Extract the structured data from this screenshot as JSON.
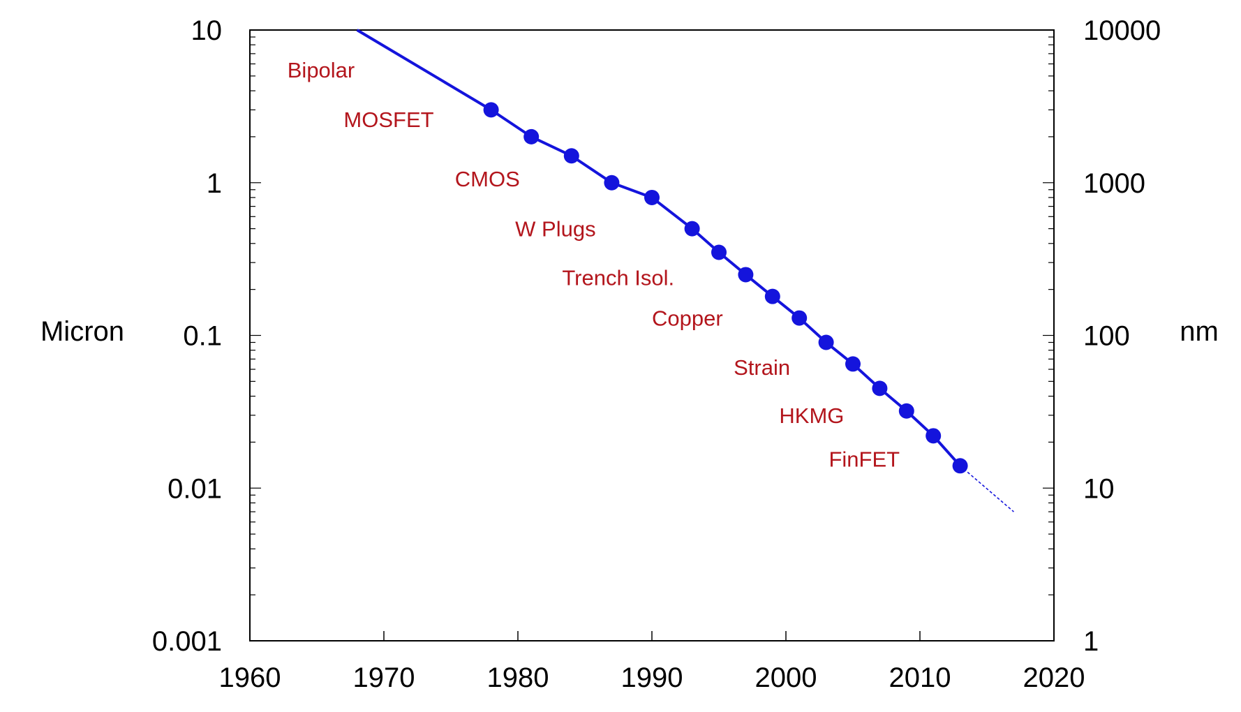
{
  "chart_data": {
    "type": "scatter",
    "xlim": [
      1960,
      2020
    ],
    "ylim": [
      0.001,
      10
    ],
    "y_scale": "log",
    "y2_scale": "log",
    "grid": false,
    "x_ticks": [
      "1960",
      "1970",
      "1980",
      "1990",
      "2000",
      "2010",
      "2020"
    ],
    "y_ticks": [
      {
        "value": 10,
        "label": "10"
      },
      {
        "value": 1,
        "label": "1"
      },
      {
        "value": 0.1,
        "label": "0.1"
      },
      {
        "value": 0.01,
        "label": "0.01"
      },
      {
        "value": 0.001,
        "label": "0.001"
      }
    ],
    "y2_ticks": [
      {
        "value": 10,
        "label": "10000"
      },
      {
        "value": 1,
        "label": "1000"
      },
      {
        "value": 0.1,
        "label": "100"
      },
      {
        "value": 0.01,
        "label": "10"
      },
      {
        "value": 0.001,
        "label": "1"
      }
    ],
    "ylabel": "Micron",
    "y2label": "nm",
    "line_color": "#1414dc",
    "annotation_color": "#b3151c",
    "trend_line": {
      "x": [
        1968,
        1978,
        1981,
        1984,
        1987,
        1990,
        1993,
        1995,
        1997,
        1999,
        2001,
        2003,
        2005,
        2007,
        2009,
        2011,
        2013
      ],
      "y": [
        10,
        3,
        2,
        1.5,
        1,
        0.8,
        0.5,
        0.35,
        0.25,
        0.18,
        0.13,
        0.09,
        0.065,
        0.045,
        0.032,
        0.022,
        0.014
      ]
    },
    "projection_line": {
      "x": [
        2013,
        2017
      ],
      "y": [
        0.014,
        0.007
      ]
    },
    "points": {
      "x": [
        1978,
        1981,
        1984,
        1987,
        1990,
        1993,
        1995,
        1997,
        1999,
        2001,
        2003,
        2005,
        2007,
        2009,
        2011,
        2013
      ],
      "y": [
        3,
        2,
        1.5,
        1,
        0.8,
        0.5,
        0.35,
        0.25,
        0.18,
        0.13,
        0.09,
        0.065,
        0.045,
        0.032,
        0.022,
        0.014
      ]
    },
    "annotations": [
      {
        "text": "Bipolar",
        "x": 1962.8,
        "y": 5.5
      },
      {
        "text": "MOSFET",
        "x": 1967.0,
        "y": 2.6
      },
      {
        "text": "CMOS",
        "x": 1975.3,
        "y": 1.06
      },
      {
        "text": "W Plugs",
        "x": 1979.8,
        "y": 0.5
      },
      {
        "text": "Trench Isol.",
        "x": 1983.3,
        "y": 0.24
      },
      {
        "text": "Copper",
        "x": 1990.0,
        "y": 0.13
      },
      {
        "text": "Strain",
        "x": 1996.1,
        "y": 0.062
      },
      {
        "text": "HKMG",
        "x": 1999.5,
        "y": 0.03
      },
      {
        "text": "FinFET",
        "x": 2003.2,
        "y": 0.0155
      }
    ]
  }
}
